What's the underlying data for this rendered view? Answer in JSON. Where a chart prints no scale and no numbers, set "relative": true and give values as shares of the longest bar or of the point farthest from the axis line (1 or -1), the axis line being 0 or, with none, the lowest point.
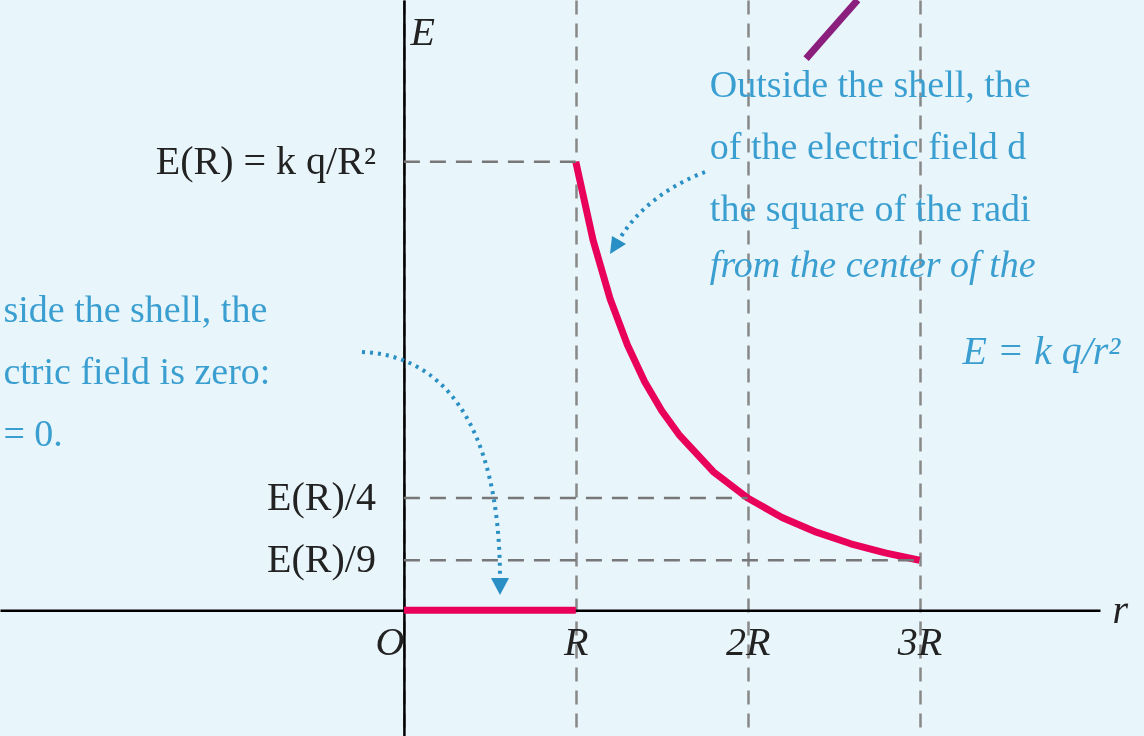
{
  "chart_data": {
    "type": "line",
    "xlabel": "r",
    "ylabel": "E",
    "relative": true,
    "xlim": [
      -2.35,
      4.05
    ],
    "xticks": [
      {
        "value": 0,
        "label": "O"
      },
      {
        "value": 1,
        "label": "R"
      },
      {
        "value": 2,
        "label": "2R"
      },
      {
        "value": 3,
        "label": "3R"
      }
    ],
    "grid": "x",
    "series": [
      {
        "color": "#e8005a",
        "x": [
          0,
          1
        ],
        "values": [
          0,
          0
        ]
      },
      {
        "color": "#e8005a",
        "x": [
          1,
          1.1,
          1.2,
          1.3,
          1.4,
          1.5,
          1.6,
          1.8,
          2,
          2.2,
          2.4,
          2.6,
          2.8,
          3
        ],
        "values": [
          0.735,
          0.607,
          0.51,
          0.435,
          0.375,
          0.327,
          0.288,
          0.227,
          0.184,
          0.152,
          0.128,
          0.109,
          0.094,
          0.082
        ]
      },
      {
        "color": "#777777",
        "line_style": "dashed",
        "x": [
          0,
          1
        ],
        "values": [
          0.735,
          0.735
        ]
      },
      {
        "color": "#777777",
        "line_style": "dashed",
        "x": [
          0,
          2
        ],
        "values": [
          0.184,
          0.184
        ]
      },
      {
        "color": "#777777",
        "line_style": "dashed",
        "x": [
          0,
          3
        ],
        "values": [
          0.082,
          0.082
        ]
      },
      {
        "color": "#8a1f7e",
        "x": [
          2.34,
          2.64
        ],
        "values": [
          0.904,
          1
        ]
      }
    ],
    "annotations": [
      "Outside the shell, the\nof the electric field d\nthe square of the radi",
      "from the center of the",
      "E = k q/r²",
      "side the shell, the\nctric field is zero:\n= 0.",
      "E(R) = k q/R²",
      "E(R)/4",
      "E(R)/9"
    ]
  }
}
